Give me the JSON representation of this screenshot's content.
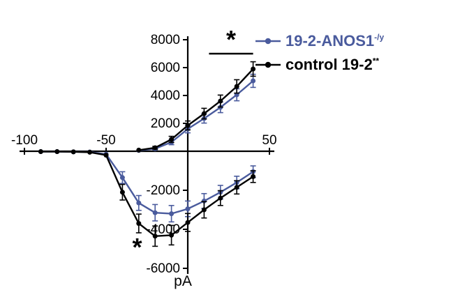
{
  "chart_data": {
    "type": "line",
    "title": "",
    "xlabel": "",
    "ylabel": "pA",
    "xlim": [
      -100,
      50
    ],
    "ylim": [
      -6000,
      8000
    ],
    "grid": false,
    "legend_position": "top-right",
    "x_ticks": [
      -100,
      -50,
      50
    ],
    "y_ticks": [
      8000,
      6000,
      4000,
      2000,
      -2000,
      -4000,
      -6000
    ],
    "series": [
      {
        "id": "anos1-inward",
        "name": "19-2-ANOS1-/y (peak inward)",
        "color": "#4a5b9d",
        "x": [
          -90,
          -80,
          -70,
          -60,
          -50,
          -40,
          -30,
          -20,
          -10,
          0,
          10,
          20,
          30,
          40
        ],
        "y": [
          -20,
          -20,
          -30,
          -40,
          -150,
          -1350,
          -2650,
          -3150,
          -3200,
          -2950,
          -2550,
          -2100,
          -1600,
          -1050
        ],
        "err": [
          0,
          0,
          0,
          0,
          0,
          300,
          380,
          420,
          420,
          400,
          380,
          350,
          320,
          300
        ]
      },
      {
        "id": "anos1-outward",
        "name": "19-2-ANOS1-/y (outward)",
        "color": "#4a5b9d",
        "x": [
          -30,
          -20,
          -10,
          0,
          10,
          20,
          30,
          40
        ],
        "y": [
          60,
          180,
          650,
          1600,
          2350,
          3150,
          4050,
          5050
        ],
        "err": [
          0,
          80,
          180,
          280,
          330,
          380,
          430,
          470
        ]
      },
      {
        "id": "control-inward",
        "name": "control 19-2** (peak inward)",
        "color": "#000000",
        "x": [
          -90,
          -80,
          -70,
          -60,
          -50,
          -40,
          -30,
          -20,
          -10,
          0,
          10,
          20,
          30,
          40
        ],
        "y": [
          -20,
          -20,
          -30,
          -50,
          -200,
          -2100,
          -3700,
          -4350,
          -4300,
          -3650,
          -3000,
          -2400,
          -1850,
          -1300
        ],
        "err": [
          0,
          0,
          0,
          0,
          0,
          400,
          480,
          520,
          500,
          460,
          420,
          380,
          340,
          300
        ]
      },
      {
        "id": "control-outward",
        "name": "control 19-2** (outward)",
        "color": "#000000",
        "x": [
          -30,
          -20,
          -10,
          0,
          10,
          20,
          30,
          40
        ],
        "y": [
          80,
          250,
          850,
          1850,
          2700,
          3600,
          4650,
          5900
        ],
        "err": [
          0,
          100,
          220,
          320,
          380,
          430,
          480,
          520
        ]
      }
    ],
    "annotations": [
      {
        "id": "sig-top",
        "star": "*",
        "x1": 13,
        "x2": 40,
        "y": 7000,
        "star_x": 26.5,
        "star_baseline_y": 7400
      },
      {
        "id": "sig-bottom",
        "star": "*",
        "x": -31,
        "y": -5350
      }
    ]
  },
  "legend": {
    "items": [
      {
        "label": "19-2-ANOS1",
        "sup": "-/y",
        "color": "#4a5b9d"
      },
      {
        "label": "control 19-2",
        "sup": "**",
        "color": "#000000"
      }
    ]
  }
}
